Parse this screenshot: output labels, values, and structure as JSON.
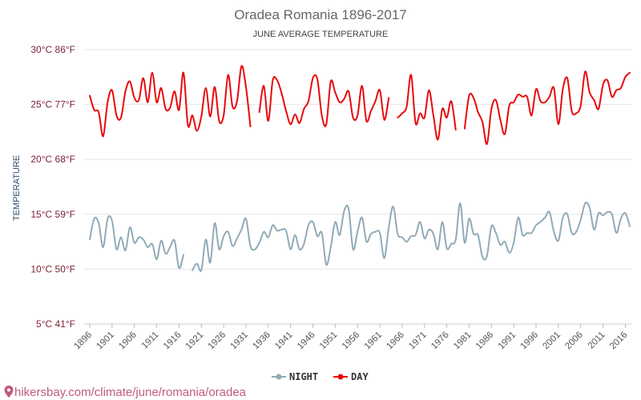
{
  "chart_data": {
    "type": "line",
    "title": "Oradea Romania 1896-2017",
    "subtitle": "JUNE AVERAGE TEMPERATURE",
    "ylabel": "TEMPERATURE",
    "xlabel": "",
    "ylim": [
      5,
      30
    ],
    "y_unit": "°C",
    "y_ticks": [
      {
        "value": 30,
        "label": "30°C 86°F"
      },
      {
        "value": 25,
        "label": "25°C 77°F"
      },
      {
        "value": 20,
        "label": "20°C 68°F"
      },
      {
        "value": 15,
        "label": "15°C 59°F"
      },
      {
        "value": 10,
        "label": "10°C 50°F"
      },
      {
        "value": 5,
        "label": "5°C 41°F"
      }
    ],
    "x_ticks": [
      "1896",
      "1901",
      "1906",
      "1911",
      "1916",
      "1921",
      "1926",
      "1931",
      "1936",
      "1941",
      "1946",
      "1951",
      "1956",
      "1961",
      "1966",
      "1971",
      "1976",
      "1981",
      "1986",
      "1991",
      "1996",
      "2001",
      "2006",
      "2011",
      "2016"
    ],
    "x_range": [
      1896,
      2017
    ],
    "grid": true,
    "legend_position": "bottom",
    "series": [
      {
        "name": "NIGHT",
        "color": "#90aab8",
        "points": [
          [
            1896,
            12.7
          ],
          [
            1897,
            14.6
          ],
          [
            1898,
            14.2
          ],
          [
            1899,
            12.0
          ],
          [
            1900,
            14.6
          ],
          [
            1901,
            14.4
          ],
          [
            1902,
            11.8
          ],
          [
            1903,
            12.9
          ],
          [
            1904,
            11.7
          ],
          [
            1905,
            13.8
          ],
          [
            1906,
            12.4
          ],
          [
            1907,
            12.9
          ],
          [
            1908,
            12.7
          ],
          [
            1909,
            12.0
          ],
          [
            1910,
            12.3
          ],
          [
            1911,
            10.9
          ],
          [
            1912,
            12.6
          ],
          [
            1913,
            11.4
          ],
          [
            1914,
            12.0
          ],
          [
            1915,
            12.6
          ],
          [
            1916,
            10.1
          ],
          [
            1917,
            11.3
          ],
          [
            1919,
            9.9
          ],
          [
            1920,
            10.5
          ],
          [
            1921,
            9.9
          ],
          [
            1922,
            12.7
          ],
          [
            1923,
            10.6
          ],
          [
            1924,
            14.2
          ],
          [
            1925,
            11.8
          ],
          [
            1926,
            13.0
          ],
          [
            1927,
            13.4
          ],
          [
            1928,
            12.1
          ],
          [
            1929,
            12.8
          ],
          [
            1930,
            13.6
          ],
          [
            1931,
            14.6
          ],
          [
            1932,
            12.1
          ],
          [
            1933,
            11.8
          ],
          [
            1934,
            12.4
          ],
          [
            1935,
            13.4
          ],
          [
            1936,
            12.9
          ],
          [
            1937,
            14.0
          ],
          [
            1938,
            13.5
          ],
          [
            1939,
            13.6
          ],
          [
            1940,
            13.5
          ],
          [
            1941,
            11.8
          ],
          [
            1942,
            13.1
          ],
          [
            1943,
            11.8
          ],
          [
            1944,
            12.3
          ],
          [
            1945,
            14.0
          ],
          [
            1946,
            14.3
          ],
          [
            1947,
            13.0
          ],
          [
            1948,
            13.3
          ],
          [
            1949,
            10.4
          ],
          [
            1950,
            12.0
          ],
          [
            1951,
            14.3
          ],
          [
            1952,
            13.1
          ],
          [
            1953,
            15.3
          ],
          [
            1954,
            15.5
          ],
          [
            1955,
            11.8
          ],
          [
            1956,
            13.4
          ],
          [
            1957,
            14.7
          ],
          [
            1958,
            12.5
          ],
          [
            1959,
            13.2
          ],
          [
            1960,
            13.4
          ],
          [
            1961,
            13.3
          ],
          [
            1962,
            11.0
          ],
          [
            1963,
            13.8
          ],
          [
            1964,
            15.7
          ],
          [
            1965,
            13.2
          ],
          [
            1966,
            12.9
          ],
          [
            1967,
            12.5
          ],
          [
            1968,
            13.0
          ],
          [
            1969,
            13.1
          ],
          [
            1970,
            14.3
          ],
          [
            1971,
            12.8
          ],
          [
            1972,
            13.6
          ],
          [
            1973,
            13.2
          ],
          [
            1974,
            11.8
          ],
          [
            1975,
            14.3
          ],
          [
            1976,
            11.9
          ],
          [
            1977,
            12.3
          ],
          [
            1978,
            12.7
          ],
          [
            1979,
            16.0
          ],
          [
            1980,
            12.4
          ],
          [
            1981,
            14.6
          ],
          [
            1982,
            13.2
          ],
          [
            1983,
            13.1
          ],
          [
            1984,
            11.1
          ],
          [
            1985,
            11.2
          ],
          [
            1986,
            13.9
          ],
          [
            1987,
            13.3
          ],
          [
            1988,
            12.2
          ],
          [
            1989,
            12.5
          ],
          [
            1990,
            11.5
          ],
          [
            1991,
            12.4
          ],
          [
            1992,
            14.7
          ],
          [
            1993,
            13.1
          ],
          [
            1994,
            13.3
          ],
          [
            1995,
            13.3
          ],
          [
            1996,
            14.0
          ],
          [
            1997,
            14.3
          ],
          [
            1998,
            14.7
          ],
          [
            1999,
            15.2
          ],
          [
            2000,
            13.4
          ],
          [
            2001,
            12.6
          ],
          [
            2002,
            14.7
          ],
          [
            2003,
            15.0
          ],
          [
            2004,
            13.3
          ],
          [
            2005,
            13.4
          ],
          [
            2006,
            14.5
          ],
          [
            2007,
            16.0
          ],
          [
            2008,
            15.6
          ],
          [
            2009,
            13.6
          ],
          [
            2010,
            15.1
          ],
          [
            2011,
            14.9
          ],
          [
            2012,
            15.2
          ],
          [
            2013,
            15.0
          ],
          [
            2014,
            13.3
          ],
          [
            2015,
            14.6
          ],
          [
            2016,
            15.1
          ],
          [
            2017,
            13.9
          ]
        ]
      },
      {
        "name": "DAY",
        "color": "#e8080c",
        "points": [
          [
            1896,
            25.8
          ],
          [
            1897,
            24.5
          ],
          [
            1898,
            24.3
          ],
          [
            1899,
            22.1
          ],
          [
            1900,
            25.2
          ],
          [
            1901,
            26.3
          ],
          [
            1902,
            24.0
          ],
          [
            1903,
            23.8
          ],
          [
            1904,
            26.2
          ],
          [
            1905,
            27.1
          ],
          [
            1906,
            25.6
          ],
          [
            1907,
            25.4
          ],
          [
            1908,
            27.4
          ],
          [
            1909,
            25.2
          ],
          [
            1910,
            27.9
          ],
          [
            1911,
            25.2
          ],
          [
            1912,
            26.5
          ],
          [
            1913,
            24.6
          ],
          [
            1914,
            24.7
          ],
          [
            1915,
            26.2
          ],
          [
            1916,
            24.5
          ],
          [
            1917,
            27.9
          ],
          [
            1918,
            23.1
          ],
          [
            1919,
            24.0
          ],
          [
            1920,
            22.6
          ],
          [
            1921,
            23.9
          ],
          [
            1922,
            26.5
          ],
          [
            1923,
            23.9
          ],
          [
            1924,
            26.6
          ],
          [
            1925,
            23.5
          ],
          [
            1926,
            24.0
          ],
          [
            1927,
            27.7
          ],
          [
            1928,
            24.8
          ],
          [
            1929,
            25.3
          ],
          [
            1930,
            28.5
          ],
          [
            1931,
            26.6
          ],
          [
            1932,
            23.0
          ],
          [
            1934,
            24.3
          ],
          [
            1935,
            26.7
          ],
          [
            1936,
            23.5
          ],
          [
            1937,
            27.2
          ],
          [
            1938,
            27.2
          ],
          [
            1939,
            26.0
          ],
          [
            1940,
            24.4
          ],
          [
            1941,
            23.2
          ],
          [
            1942,
            24.1
          ],
          [
            1943,
            23.3
          ],
          [
            1944,
            24.6
          ],
          [
            1945,
            25.3
          ],
          [
            1946,
            27.4
          ],
          [
            1947,
            27.3
          ],
          [
            1948,
            24.0
          ],
          [
            1949,
            23.2
          ],
          [
            1950,
            27.1
          ],
          [
            1951,
            26.1
          ],
          [
            1952,
            25.2
          ],
          [
            1953,
            25.5
          ],
          [
            1954,
            26.2
          ],
          [
            1955,
            23.8
          ],
          [
            1956,
            24.0
          ],
          [
            1957,
            26.7
          ],
          [
            1958,
            23.5
          ],
          [
            1959,
            24.4
          ],
          [
            1960,
            25.3
          ],
          [
            1961,
            26.3
          ],
          [
            1962,
            23.6
          ],
          [
            1963,
            25.6
          ],
          [
            1965,
            23.8
          ],
          [
            1966,
            24.2
          ],
          [
            1967,
            24.8
          ],
          [
            1968,
            27.7
          ],
          [
            1969,
            23.3
          ],
          [
            1970,
            24.2
          ],
          [
            1971,
            23.8
          ],
          [
            1972,
            26.3
          ],
          [
            1973,
            24.0
          ],
          [
            1974,
            21.8
          ],
          [
            1975,
            24.6
          ],
          [
            1976,
            23.8
          ],
          [
            1977,
            25.3
          ],
          [
            1978,
            22.7
          ],
          [
            1980,
            22.8
          ],
          [
            1981,
            25.8
          ],
          [
            1982,
            25.6
          ],
          [
            1983,
            24.3
          ],
          [
            1984,
            23.4
          ],
          [
            1985,
            21.4
          ],
          [
            1986,
            24.6
          ],
          [
            1987,
            25.4
          ],
          [
            1988,
            23.6
          ],
          [
            1989,
            22.3
          ],
          [
            1990,
            24.9
          ],
          [
            1991,
            25.2
          ],
          [
            1992,
            25.9
          ],
          [
            1993,
            25.7
          ],
          [
            1994,
            25.7
          ],
          [
            1995,
            24.0
          ],
          [
            1996,
            26.4
          ],
          [
            1997,
            25.3
          ],
          [
            1998,
            25.2
          ],
          [
            1999,
            25.7
          ],
          [
            2000,
            26.5
          ],
          [
            2001,
            23.2
          ],
          [
            2002,
            26.4
          ],
          [
            2003,
            27.4
          ],
          [
            2004,
            24.4
          ],
          [
            2005,
            24.2
          ],
          [
            2006,
            24.9
          ],
          [
            2007,
            28.0
          ],
          [
            2008,
            26.1
          ],
          [
            2009,
            25.4
          ],
          [
            2010,
            24.6
          ],
          [
            2011,
            26.8
          ],
          [
            2012,
            27.2
          ],
          [
            2013,
            25.7
          ],
          [
            2014,
            26.3
          ],
          [
            2015,
            26.5
          ],
          [
            2016,
            27.5
          ],
          [
            2017,
            27.9
          ]
        ]
      }
    ]
  },
  "legend": {
    "night_label": "NIGHT",
    "day_label": "DAY"
  },
  "watermark": {
    "text": "hikersbay.com/climate/june/romania/oradea",
    "icon": "map-pin-icon",
    "color": "#c05a7e"
  }
}
